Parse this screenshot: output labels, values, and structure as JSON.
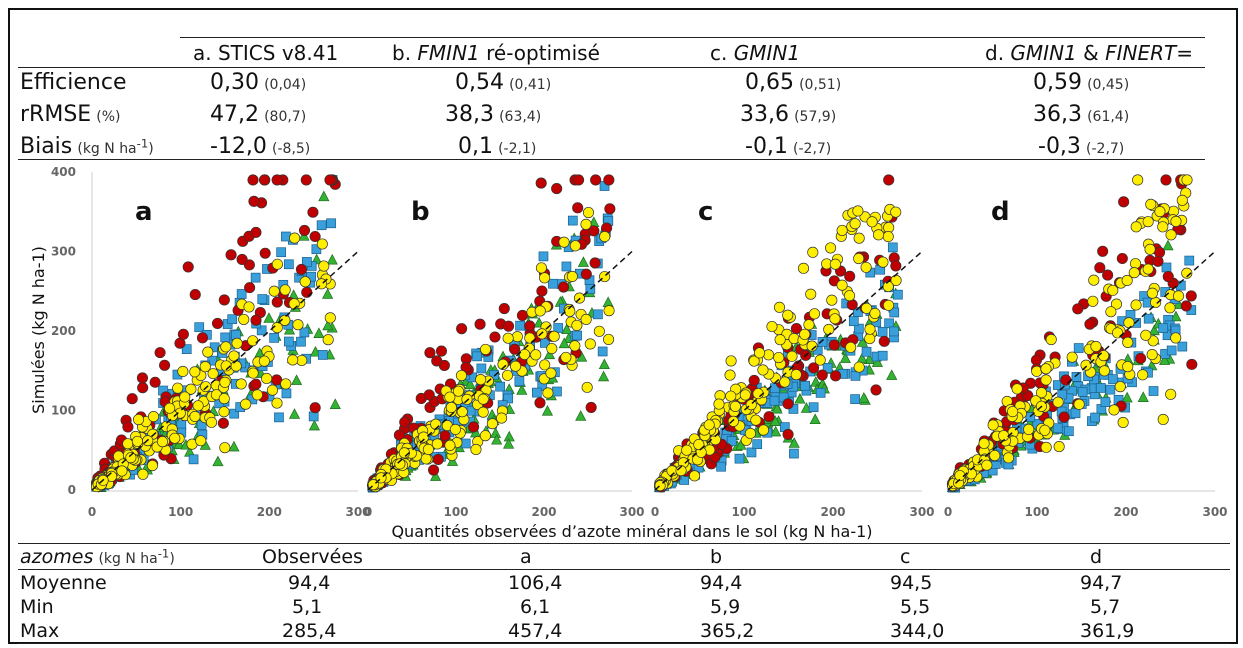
{
  "stats_table": {
    "columns": [
      {
        "prefix": "a. ",
        "name": "STICS v8.41",
        "italic": false,
        "suffix": ""
      },
      {
        "prefix": "b. ",
        "name": "FMIN1",
        "italic": true,
        "suffix": " ré-optimisé"
      },
      {
        "prefix": "c. ",
        "name": "GMIN1",
        "italic": true,
        "suffix": ""
      },
      {
        "prefix": "d. ",
        "name": "GMIN1",
        "italic": true,
        "suffix": " & ",
        "name2": "FINERT",
        "suffix2": "="
      }
    ],
    "rows": [
      {
        "label": "Efficience",
        "unit": "",
        "values": [
          "0,30",
          "0,54",
          "0,65",
          "0,59"
        ],
        "paren": [
          "(0,04)",
          "(0,41)",
          "(0,51)",
          "(0,45)"
        ]
      },
      {
        "label": "rRMSE",
        "unit": "(%)",
        "values": [
          "47,2",
          "38,3",
          "33,6",
          "36,3"
        ],
        "paren": [
          "(80,7)",
          "(63,4)",
          "(57,9)",
          "(61,4)"
        ]
      },
      {
        "label": "Biais",
        "unit": "(kg N ha-1)",
        "values": [
          "-12,0",
          "0,1",
          "-0,1",
          "-0,3"
        ],
        "paren": [
          "(-8,5)",
          "(-2,1)",
          "(-2,7)",
          "(-2,7)"
        ]
      }
    ]
  },
  "chart_data": {
    "type": "scatter",
    "panels": [
      "a",
      "b",
      "c",
      "d"
    ],
    "xlabel": "Quantités observées d’azote minéral dans le sol (kg N ha-1)",
    "ylabel": "Simulées (kg N ha-1)",
    "xlim": [
      0,
      300
    ],
    "ylim": [
      0,
      400
    ],
    "xticks": [
      "0",
      "100",
      "200",
      "300"
    ],
    "yticks": [
      "0",
      "100",
      "200",
      "300",
      "400"
    ],
    "reference_line": "1:1",
    "series_markers": [
      {
        "marker": "circle",
        "color": "#c00000"
      },
      {
        "marker": "square",
        "color": "#3aa0dc"
      },
      {
        "marker": "triangle",
        "color": "#33b233"
      },
      {
        "marker": "circle",
        "color": "#ffee00"
      }
    ]
  },
  "summary_table": {
    "title": "azomes",
    "title_unit": "(kg N ha-1)",
    "headers": [
      "Observées",
      "a",
      "b",
      "c",
      "d"
    ],
    "rows": [
      {
        "label": "Moyenne",
        "values": [
          "94,4",
          "106,4",
          "94,4",
          "94,5",
          "94,7"
        ]
      },
      {
        "label": "Min",
        "values": [
          "5,1",
          "6,1",
          "5,9",
          "5,5",
          "5,7"
        ]
      },
      {
        "label": "Max",
        "values": [
          "285,4",
          "457,4",
          "365,2",
          "344,0",
          "361,9"
        ]
      }
    ]
  }
}
